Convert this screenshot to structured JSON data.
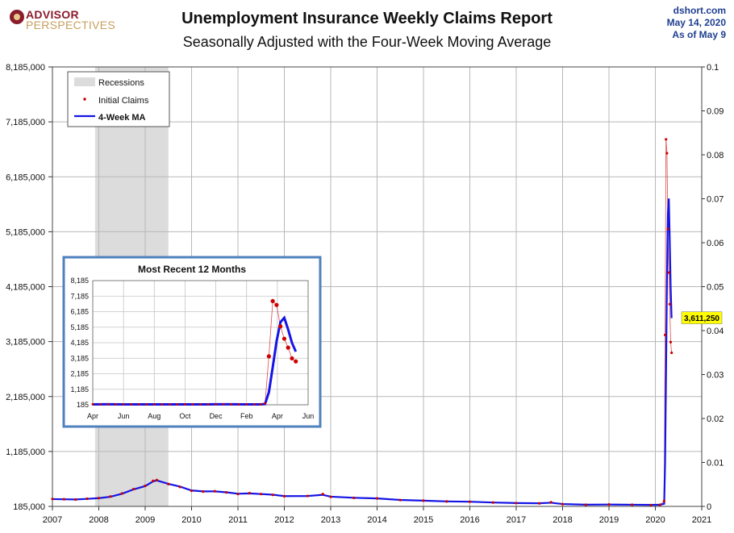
{
  "header": {
    "title": "Unemployment Insurance Weekly Claims Report",
    "subtitle": "Seasonally Adjusted with the Four-Week Moving Average",
    "logo_line1": "ADVISOR",
    "logo_line2": "PERSPECTIVES",
    "source": "dshort.com",
    "date": "May 14, 2020",
    "as_of": "As of May 9"
  },
  "colors": {
    "claims": "#cc0000",
    "ma": "#1414e6",
    "recession": "#dcdcdc",
    "inset_border": "#4f81bd",
    "callout": "#ffff00"
  },
  "chart_data": [
    {
      "type": "line",
      "title": "Unemployment Insurance Weekly Claims Report",
      "subtitle": "Seasonally Adjusted with the Four-Week Moving Average",
      "x_ticks": [
        "2007",
        "2008",
        "2009",
        "2010",
        "2011",
        "2012",
        "2013",
        "2014",
        "2015",
        "2016",
        "2017",
        "2018",
        "2019",
        "2020",
        "2021"
      ],
      "xlim": [
        2007,
        2021
      ],
      "ylim": [
        185000,
        8185000
      ],
      "y_ticks": [
        "185,000",
        "1,185,000",
        "2,185,000",
        "3,185,000",
        "4,185,000",
        "5,185,000",
        "6,185,000",
        "7,185,000",
        "8,185,000"
      ],
      "y2_ticks": [
        "0",
        "0.01",
        "0.02",
        "0.03",
        "0.04",
        "0.05",
        "0.06",
        "0.07",
        "0.08",
        "0.09",
        "0.1"
      ],
      "grid": true,
      "legend_position": "top-left",
      "legend": [
        "Recessions",
        "Initial Claims",
        "4-Week MA"
      ],
      "recession": {
        "start": 2007.92,
        "end": 2009.5
      },
      "callout_label": "3,611,250",
      "series": [
        {
          "name": "Initial Claims",
          "points": [
            [
              2007.0,
              320000
            ],
            [
              2007.25,
              315000
            ],
            [
              2007.5,
              310000
            ],
            [
              2007.75,
              325000
            ],
            [
              2008.0,
              335000
            ],
            [
              2008.25,
              365000
            ],
            [
              2008.5,
              420000
            ],
            [
              2008.75,
              500000
            ],
            [
              2009.0,
              560000
            ],
            [
              2009.17,
              650000
            ],
            [
              2009.25,
              665000
            ],
            [
              2009.5,
              590000
            ],
            [
              2009.75,
              540000
            ],
            [
              2010.0,
              470000
            ],
            [
              2010.25,
              455000
            ],
            [
              2010.5,
              460000
            ],
            [
              2010.75,
              440000
            ],
            [
              2011.0,
              410000
            ],
            [
              2011.25,
              425000
            ],
            [
              2011.5,
              410000
            ],
            [
              2011.75,
              395000
            ],
            [
              2012.0,
              370000
            ],
            [
              2012.5,
              375000
            ],
            [
              2012.83,
              410000
            ],
            [
              2013.0,
              360000
            ],
            [
              2013.5,
              340000
            ],
            [
              2014.0,
              330000
            ],
            [
              2014.5,
              300000
            ],
            [
              2015.0,
              290000
            ],
            [
              2015.5,
              275000
            ],
            [
              2016.0,
              270000
            ],
            [
              2016.5,
              255000
            ],
            [
              2017.0,
              245000
            ],
            [
              2017.5,
              240000
            ],
            [
              2017.75,
              260000
            ],
            [
              2018.0,
              225000
            ],
            [
              2018.5,
              215000
            ],
            [
              2019.0,
              220000
            ],
            [
              2019.5,
              215000
            ],
            [
              2019.9,
              210000
            ],
            [
              2020.1,
              215000
            ],
            [
              2020.19,
              282000
            ],
            [
              2020.21,
              3307000
            ],
            [
              2020.23,
              6867000
            ],
            [
              2020.25,
              6615000
            ],
            [
              2020.27,
              5237000
            ],
            [
              2020.29,
              4442000
            ],
            [
              2020.31,
              3867000
            ],
            [
              2020.33,
              3176000
            ],
            [
              2020.35,
              2981000
            ]
          ]
        },
        {
          "name": "4-Week MA",
          "points": [
            [
              2007.0,
              318000
            ],
            [
              2007.25,
              314000
            ],
            [
              2007.5,
              312000
            ],
            [
              2007.75,
              322000
            ],
            [
              2008.0,
              335000
            ],
            [
              2008.25,
              360000
            ],
            [
              2008.5,
              415000
            ],
            [
              2008.75,
              495000
            ],
            [
              2009.0,
              555000
            ],
            [
              2009.17,
              640000
            ],
            [
              2009.25,
              658000
            ],
            [
              2009.5,
              595000
            ],
            [
              2009.75,
              545000
            ],
            [
              2010.0,
              475000
            ],
            [
              2010.25,
              458000
            ],
            [
              2010.5,
              458000
            ],
            [
              2010.75,
              442000
            ],
            [
              2011.0,
              415000
            ],
            [
              2011.25,
              422000
            ],
            [
              2011.5,
              410000
            ],
            [
              2011.75,
              398000
            ],
            [
              2012.0,
              372000
            ],
            [
              2012.5,
              374000
            ],
            [
              2012.83,
              395000
            ],
            [
              2013.0,
              362000
            ],
            [
              2013.5,
              342000
            ],
            [
              2014.0,
              330000
            ],
            [
              2014.5,
              302000
            ],
            [
              2015.0,
              290000
            ],
            [
              2015.5,
              276000
            ],
            [
              2016.0,
              270000
            ],
            [
              2016.5,
              256000
            ],
            [
              2017.0,
              246000
            ],
            [
              2017.5,
              242000
            ],
            [
              2017.75,
              252000
            ],
            [
              2018.0,
              228000
            ],
            [
              2018.5,
              216000
            ],
            [
              2019.0,
              219000
            ],
            [
              2019.5,
              215000
            ],
            [
              2019.9,
              212000
            ],
            [
              2020.1,
              214000
            ],
            [
              2020.19,
              232000
            ],
            [
              2020.21,
              998000
            ],
            [
              2020.23,
              2612000
            ],
            [
              2020.25,
              4282000
            ],
            [
              2020.27,
              5506000
            ],
            [
              2020.29,
              5790000
            ],
            [
              2020.31,
              5040000
            ],
            [
              2020.33,
              4176000
            ],
            [
              2020.35,
              3611250
            ]
          ]
        }
      ]
    },
    {
      "type": "line",
      "title": "Most Recent 12 Months",
      "x_ticks": [
        "Apr",
        "Jun",
        "Aug",
        "Oct",
        "Dec",
        "Feb",
        "Apr",
        "Jun"
      ],
      "xlim": [
        0,
        14
      ],
      "ylim": [
        185000,
        8185000
      ],
      "y_ticks": [
        "185",
        "1,185",
        "2,185",
        "3,185",
        "4,185",
        "5,185",
        "6,185",
        "7,185",
        "8,185"
      ],
      "grid": true,
      "series": [
        {
          "name": "Initial Claims",
          "points": [
            [
              0.0,
              215000
            ],
            [
              0.5,
              212000
            ],
            [
              1.0,
              218000
            ],
            [
              1.5,
              214000
            ],
            [
              2.0,
              216000
            ],
            [
              2.5,
              212000
            ],
            [
              3.0,
              215000
            ],
            [
              3.5,
              210000
            ],
            [
              4.0,
              212000
            ],
            [
              4.5,
              214000
            ],
            [
              5.0,
              211000
            ],
            [
              5.5,
              213000
            ],
            [
              6.0,
              212000
            ],
            [
              6.5,
              210000
            ],
            [
              7.0,
              214000
            ],
            [
              7.5,
              211000
            ],
            [
              8.0,
              216000
            ],
            [
              8.5,
              220000
            ],
            [
              9.0,
              214000
            ],
            [
              9.5,
              212000
            ],
            [
              10.0,
              210000
            ],
            [
              10.5,
              213000
            ],
            [
              10.9,
              215000
            ],
            [
              11.2,
              282000
            ],
            [
              11.45,
              3307000
            ],
            [
              11.7,
              6867000
            ],
            [
              11.95,
              6615000
            ],
            [
              12.2,
              5237000
            ],
            [
              12.45,
              4442000
            ],
            [
              12.7,
              3867000
            ],
            [
              12.95,
              3176000
            ],
            [
              13.2,
              2981000
            ]
          ]
        },
        {
          "name": "4-Week MA",
          "points": [
            [
              0.0,
              214000
            ],
            [
              1.0,
              215000
            ],
            [
              2.0,
              214000
            ],
            [
              3.0,
              213000
            ],
            [
              4.0,
              212000
            ],
            [
              5.0,
              212000
            ],
            [
              6.0,
              211000
            ],
            [
              7.0,
              212000
            ],
            [
              8.0,
              215000
            ],
            [
              9.0,
              215000
            ],
            [
              10.0,
              212000
            ],
            [
              10.9,
              213000
            ],
            [
              11.2,
              232000
            ],
            [
              11.45,
              998000
            ],
            [
              11.7,
              2612000
            ],
            [
              11.95,
              4282000
            ],
            [
              12.2,
              5506000
            ],
            [
              12.45,
              5790000
            ],
            [
              12.7,
              5040000
            ],
            [
              12.95,
              4176000
            ],
            [
              13.2,
              3611250
            ]
          ]
        }
      ]
    }
  ]
}
